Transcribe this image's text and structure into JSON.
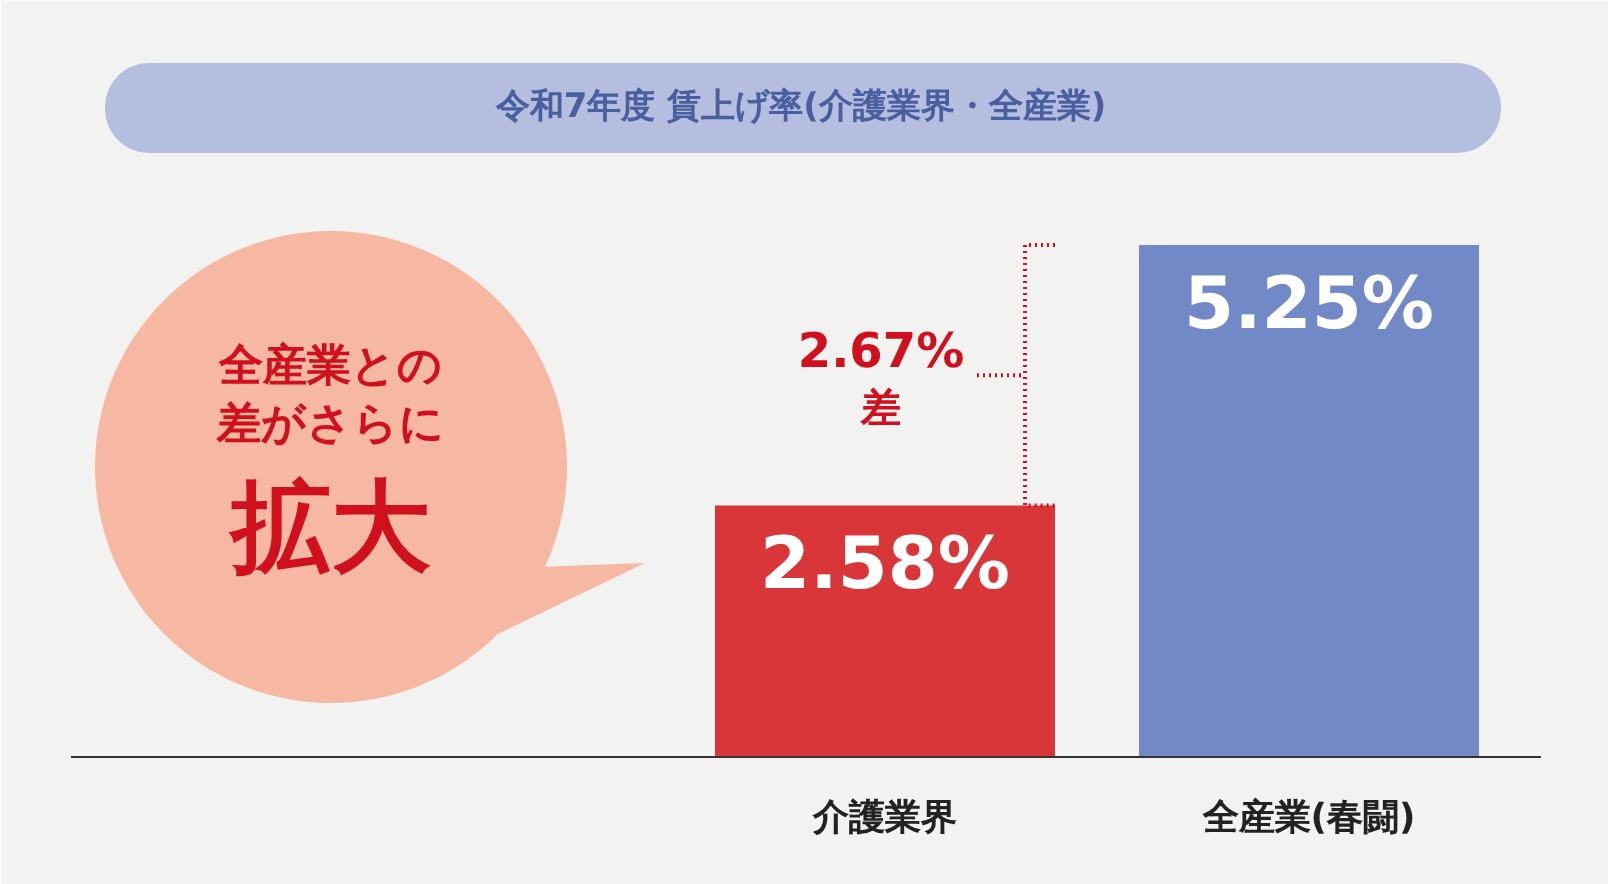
{
  "chart_data": {
    "type": "bar",
    "title": "令和7年度 賃上げ率(介護業界・全産業)",
    "categories": [
      "介護業界",
      "全産業(春闘)"
    ],
    "values": [
      2.58,
      5.25
    ],
    "colors": [
      "#d9363a",
      "#7189c6"
    ],
    "value_labels": [
      "2.58%",
      "5.25%"
    ],
    "tick_labels": "x",
    "annotations": [
      "全産業との",
      "差がさらに",
      "拡大",
      "2.67%",
      "差"
    ]
  }
}
